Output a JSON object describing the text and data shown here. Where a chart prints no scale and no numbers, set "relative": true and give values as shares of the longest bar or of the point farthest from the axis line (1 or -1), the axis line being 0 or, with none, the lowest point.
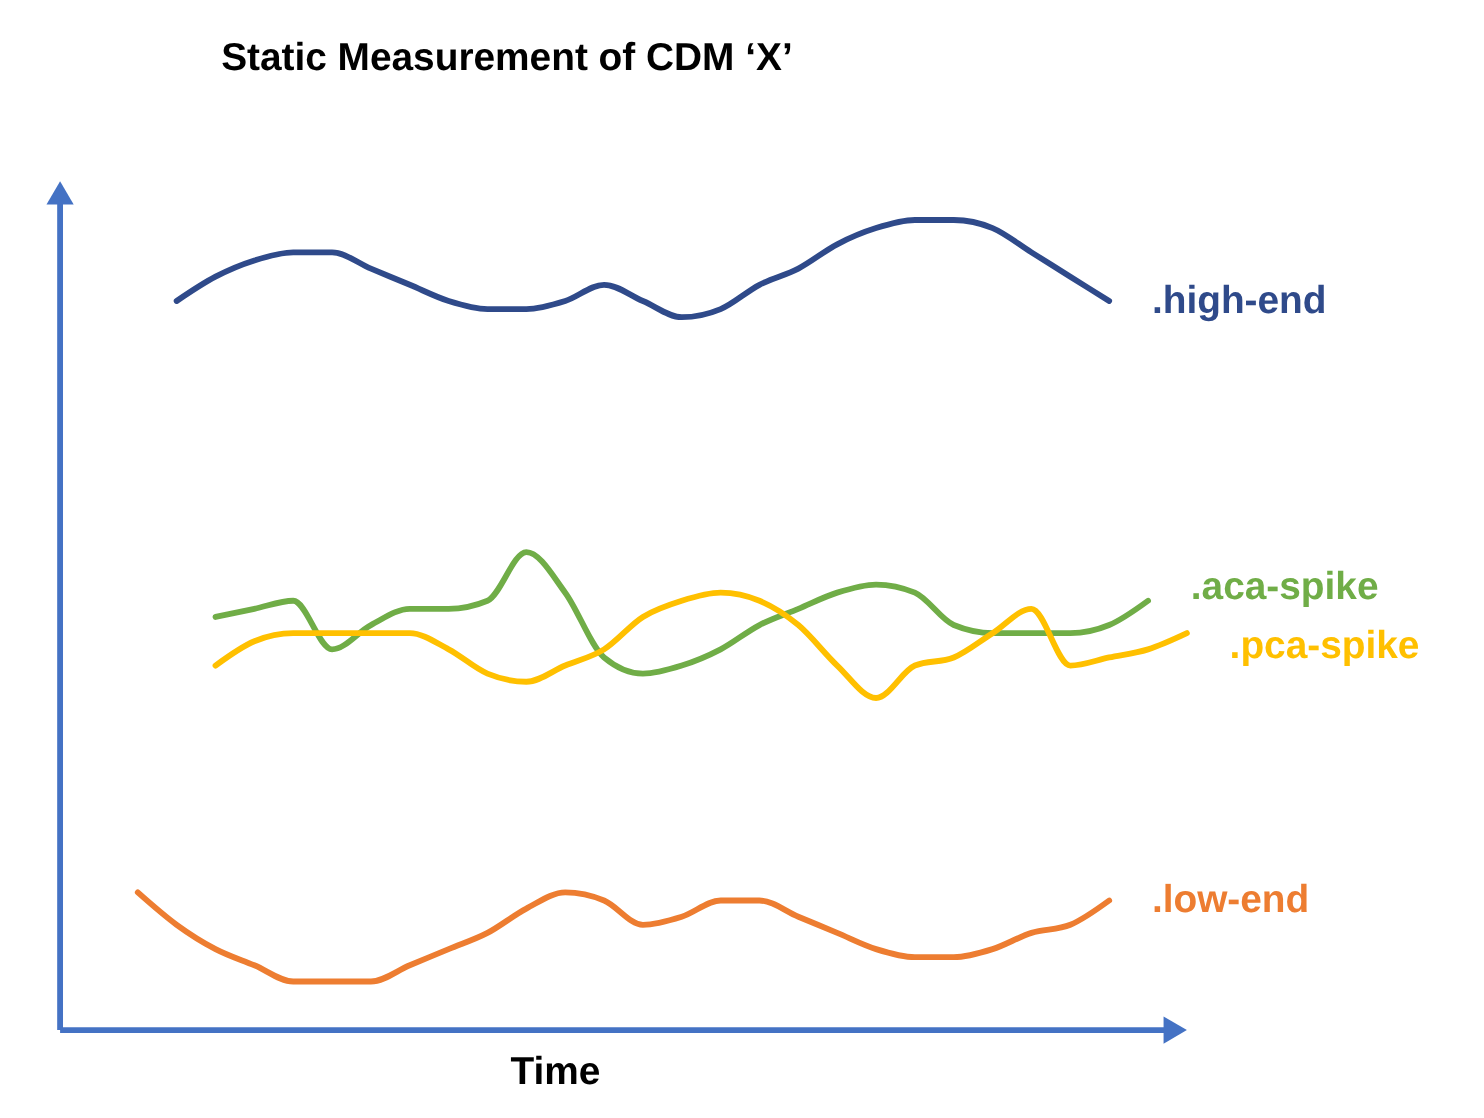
{
  "chart_data": {
    "type": "line",
    "title": "Static Measurement of CDM ‘X’",
    "xlabel": "Time",
    "relative": true,
    "categories": [
      null,
      null,
      null,
      null,
      null,
      null,
      null,
      null,
      null,
      null,
      null,
      null,
      null,
      null,
      null,
      null,
      null,
      null,
      null,
      null,
      null,
      null,
      null,
      null,
      null,
      null,
      null,
      null
    ],
    "series": [
      {
        "name": ".high-end",
        "color": "#2f4a8a",
        "values": [
          null,
          0.9,
          0.93,
          0.95,
          0.96,
          0.96,
          0.94,
          0.92,
          0.9,
          0.89,
          0.89,
          0.9,
          0.92,
          0.9,
          0.88,
          0.89,
          0.92,
          0.94,
          0.97,
          0.99,
          1.0,
          1.0,
          0.99,
          0.96,
          0.93,
          0.9,
          null,
          null
        ]
      },
      {
        "name": ".aca-spike",
        "color": "#70ad47",
        "values": [
          null,
          null,
          0.51,
          0.52,
          0.53,
          0.47,
          0.5,
          0.52,
          0.52,
          0.53,
          0.59,
          0.54,
          0.46,
          0.44,
          0.45,
          0.47,
          0.5,
          0.52,
          0.54,
          0.55,
          0.54,
          0.5,
          0.49,
          0.49,
          0.49,
          0.5,
          0.53,
          null
        ]
      },
      {
        "name": ".pca-spike",
        "color": "#ffc000",
        "values": [
          null,
          null,
          0.45,
          0.48,
          0.49,
          0.49,
          0.49,
          0.49,
          0.47,
          0.44,
          0.43,
          0.45,
          0.47,
          0.51,
          0.53,
          0.54,
          0.53,
          0.5,
          0.45,
          0.41,
          0.45,
          0.46,
          0.49,
          0.52,
          0.45,
          0.46,
          0.47,
          0.49
        ]
      },
      {
        "name": ".low-end",
        "color": "#ed7d31",
        "values": [
          0.17,
          0.13,
          0.1,
          0.08,
          0.06,
          0.06,
          0.06,
          0.08,
          0.1,
          0.12,
          0.15,
          0.17,
          0.16,
          0.13,
          0.14,
          0.16,
          0.16,
          0.14,
          0.12,
          0.1,
          0.09,
          0.09,
          0.1,
          0.12,
          0.13,
          0.16,
          null,
          null
        ]
      }
    ]
  }
}
